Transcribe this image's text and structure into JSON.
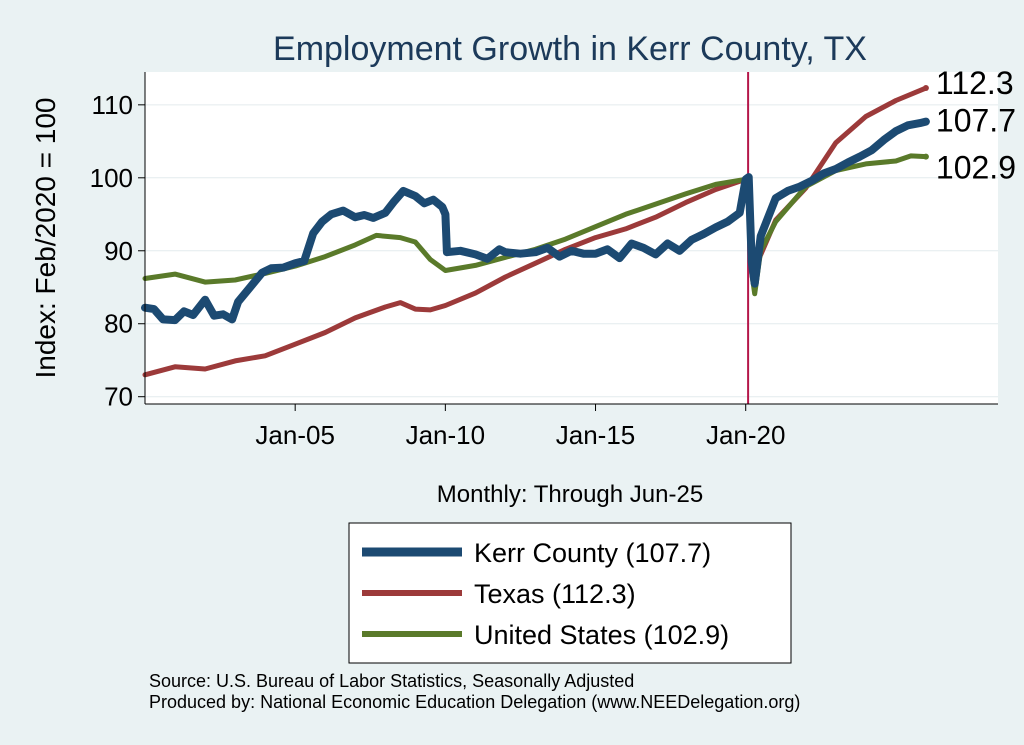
{
  "chart_data": {
    "type": "line",
    "title": "Employment Growth in Kerr  County, TX",
    "ylabel": "Index: Feb/2020 = 100",
    "xlabel": "Monthly: Through Jun-25",
    "ylim": [
      69,
      114.5
    ],
    "xlim": [
      2000.0,
      2028.4
    ],
    "yticks": [
      70,
      80,
      90,
      100,
      110
    ],
    "xticks": [
      {
        "label": "Jan-05",
        "value": 2005.0
      },
      {
        "label": "Jan-10",
        "value": 2010.0
      },
      {
        "label": "Jan-15",
        "value": 2015.0
      },
      {
        "label": "Jan-20",
        "value": 2020.0
      }
    ],
    "reference_line": {
      "x": 2020.08,
      "color": "#b5174a"
    },
    "series": [
      {
        "name": "Kerr  County",
        "legend": "Kerr  County (107.7)",
        "end_label": "107.7",
        "color": "#1c4a72",
        "width": 8,
        "points": [
          [
            2000.0,
            82.2
          ],
          [
            2000.3,
            82.0
          ],
          [
            2000.6,
            80.6
          ],
          [
            2001.0,
            80.5
          ],
          [
            2001.3,
            81.7
          ],
          [
            2001.6,
            81.2
          ],
          [
            2002.0,
            83.3
          ],
          [
            2002.3,
            81.1
          ],
          [
            2002.6,
            81.3
          ],
          [
            2002.9,
            80.6
          ],
          [
            2003.1,
            83.0
          ],
          [
            2003.5,
            85.0
          ],
          [
            2003.9,
            87.0
          ],
          [
            2004.2,
            87.6
          ],
          [
            2004.6,
            87.7
          ],
          [
            2005.0,
            88.3
          ],
          [
            2005.3,
            88.6
          ],
          [
            2005.6,
            92.4
          ],
          [
            2005.9,
            94.0
          ],
          [
            2006.2,
            95.0
          ],
          [
            2006.6,
            95.5
          ],
          [
            2007.0,
            94.6
          ],
          [
            2007.3,
            94.9
          ],
          [
            2007.6,
            94.5
          ],
          [
            2008.0,
            95.2
          ],
          [
            2008.3,
            96.8
          ],
          [
            2008.6,
            98.2
          ],
          [
            2009.0,
            97.5
          ],
          [
            2009.3,
            96.5
          ],
          [
            2009.6,
            97.0
          ],
          [
            2009.9,
            96.0
          ],
          [
            2010.0,
            95.0
          ],
          [
            2010.05,
            89.8
          ],
          [
            2010.5,
            90.0
          ],
          [
            2011.0,
            89.5
          ],
          [
            2011.4,
            88.9
          ],
          [
            2011.8,
            90.2
          ],
          [
            2012.0,
            89.8
          ],
          [
            2012.5,
            89.6
          ],
          [
            2013.0,
            89.8
          ],
          [
            2013.4,
            90.4
          ],
          [
            2013.8,
            89.2
          ],
          [
            2014.2,
            90.0
          ],
          [
            2014.6,
            89.6
          ],
          [
            2015.0,
            89.6
          ],
          [
            2015.4,
            90.2
          ],
          [
            2015.8,
            89.0
          ],
          [
            2016.2,
            91.0
          ],
          [
            2016.6,
            90.4
          ],
          [
            2017.0,
            89.5
          ],
          [
            2017.4,
            91.0
          ],
          [
            2017.8,
            90.0
          ],
          [
            2018.2,
            91.5
          ],
          [
            2018.6,
            92.3
          ],
          [
            2019.0,
            93.2
          ],
          [
            2019.4,
            94.0
          ],
          [
            2019.8,
            95.2
          ],
          [
            2020.0,
            99.8
          ],
          [
            2020.1,
            100.1
          ],
          [
            2020.2,
            88.5
          ],
          [
            2020.3,
            85.5
          ],
          [
            2020.5,
            92.0
          ],
          [
            2021.0,
            97.2
          ],
          [
            2021.4,
            98.2
          ],
          [
            2021.8,
            98.8
          ],
          [
            2022.2,
            99.6
          ],
          [
            2022.6,
            100.6
          ],
          [
            2023.0,
            101.2
          ],
          [
            2023.4,
            102.1
          ],
          [
            2023.8,
            102.9
          ],
          [
            2024.2,
            103.8
          ],
          [
            2024.6,
            105.2
          ],
          [
            2025.0,
            106.4
          ],
          [
            2025.4,
            107.2
          ],
          [
            2025.8,
            107.5
          ],
          [
            2026.0,
            107.7
          ]
        ]
      },
      {
        "name": "Texas",
        "legend": "Texas (112.3)",
        "end_label": "112.3",
        "color": "#9c3a3a",
        "width": 5,
        "points": [
          [
            2000.0,
            73.0
          ],
          [
            2001.0,
            74.1
          ],
          [
            2002.0,
            73.8
          ],
          [
            2003.0,
            74.9
          ],
          [
            2004.0,
            75.6
          ],
          [
            2005.0,
            77.2
          ],
          [
            2006.0,
            78.8
          ],
          [
            2007.0,
            80.8
          ],
          [
            2008.0,
            82.3
          ],
          [
            2008.5,
            82.9
          ],
          [
            2009.0,
            82.0
          ],
          [
            2009.5,
            81.9
          ],
          [
            2010.0,
            82.5
          ],
          [
            2011.0,
            84.2
          ],
          [
            2012.0,
            86.4
          ],
          [
            2013.0,
            88.3
          ],
          [
            2014.0,
            90.2
          ],
          [
            2015.0,
            91.8
          ],
          [
            2016.0,
            93.0
          ],
          [
            2017.0,
            94.6
          ],
          [
            2018.0,
            96.6
          ],
          [
            2019.0,
            98.4
          ],
          [
            2020.0,
            99.8
          ],
          [
            2020.1,
            100.0
          ],
          [
            2020.25,
            85.8
          ],
          [
            2020.4,
            88.5
          ],
          [
            2021.0,
            94.2
          ],
          [
            2022.0,
            98.6
          ],
          [
            2023.0,
            104.8
          ],
          [
            2024.0,
            108.4
          ],
          [
            2025.0,
            110.6
          ],
          [
            2026.0,
            112.3
          ]
        ]
      },
      {
        "name": "United States",
        "legend": "United States (102.9)",
        "end_label": "102.9",
        "color": "#5a7a2a",
        "width": 5,
        "points": [
          [
            2000.0,
            86.2
          ],
          [
            2001.0,
            86.8
          ],
          [
            2002.0,
            85.7
          ],
          [
            2003.0,
            86.0
          ],
          [
            2004.0,
            86.9
          ],
          [
            2005.0,
            87.9
          ],
          [
            2006.0,
            89.2
          ],
          [
            2007.0,
            90.8
          ],
          [
            2007.7,
            92.1
          ],
          [
            2008.5,
            91.8
          ],
          [
            2009.0,
            91.2
          ],
          [
            2009.5,
            88.8
          ],
          [
            2010.0,
            87.3
          ],
          [
            2011.0,
            88.0
          ],
          [
            2012.0,
            89.1
          ],
          [
            2013.0,
            90.2
          ],
          [
            2014.0,
            91.6
          ],
          [
            2015.0,
            93.3
          ],
          [
            2016.0,
            95.0
          ],
          [
            2017.0,
            96.4
          ],
          [
            2018.0,
            97.8
          ],
          [
            2019.0,
            99.1
          ],
          [
            2020.0,
            99.8
          ],
          [
            2020.1,
            100.0
          ],
          [
            2020.2,
            87.0
          ],
          [
            2020.3,
            84.1
          ],
          [
            2020.5,
            90.0
          ],
          [
            2021.0,
            94.0
          ],
          [
            2022.0,
            98.8
          ],
          [
            2023.0,
            101.0
          ],
          [
            2024.0,
            101.9
          ],
          [
            2025.0,
            102.3
          ],
          [
            2025.5,
            103.0
          ],
          [
            2026.0,
            102.9
          ]
        ]
      }
    ]
  },
  "footer": {
    "source": "Source: U.S. Bureau of Labor Statistics, Seasonally Adjusted",
    "produced_by": "Produced by: National Economic Education Delegation (www.NEEDelegation.org)"
  },
  "colors": {
    "background": "#eaf2f3",
    "plot_background": "#ffffff",
    "title": "#1c3a5a",
    "grid": "#e4ebee"
  }
}
